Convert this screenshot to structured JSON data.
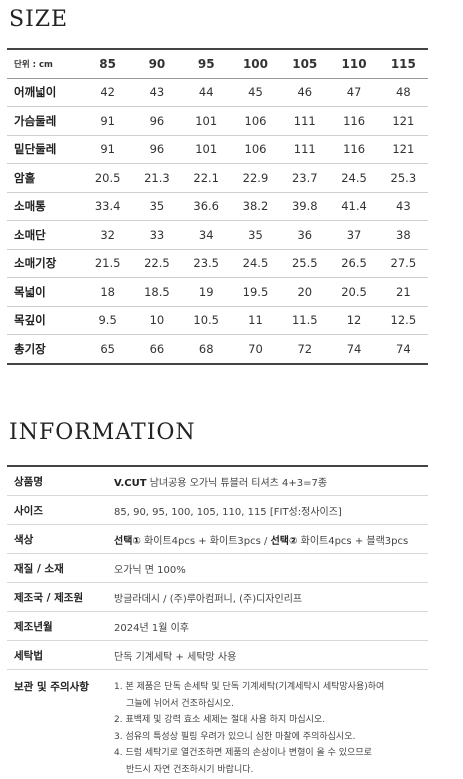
{
  "size_section": {
    "title": "SIZE",
    "unit_label": "단위 : cm",
    "sizes": [
      "85",
      "90",
      "95",
      "100",
      "105",
      "110",
      "115"
    ],
    "rows": [
      {
        "label": "어깨넓이",
        "values": [
          "42",
          "43",
          "44",
          "45",
          "46",
          "47",
          "48"
        ]
      },
      {
        "label": "가슴둘레",
        "values": [
          "91",
          "96",
          "101",
          "106",
          "111",
          "116",
          "121"
        ]
      },
      {
        "label": "밑단둘레",
        "values": [
          "91",
          "96",
          "101",
          "106",
          "111",
          "116",
          "121"
        ]
      },
      {
        "label": "암홀",
        "values": [
          "20.5",
          "21.3",
          "22.1",
          "22.9",
          "23.7",
          "24.5",
          "25.3"
        ]
      },
      {
        "label": "소매통",
        "values": [
          "33.4",
          "35",
          "36.6",
          "38.2",
          "39.8",
          "41.4",
          "43"
        ]
      },
      {
        "label": "소매단",
        "values": [
          "32",
          "33",
          "34",
          "35",
          "36",
          "37",
          "38"
        ]
      },
      {
        "label": "소매기장",
        "values": [
          "21.5",
          "22.5",
          "23.5",
          "24.5",
          "25.5",
          "26.5",
          "27.5"
        ]
      },
      {
        "label": "목넓이",
        "values": [
          "18",
          "18.5",
          "19",
          "19.5",
          "20",
          "20.5",
          "21"
        ]
      },
      {
        "label": "목깊이",
        "values": [
          "9.5",
          "10",
          "10.5",
          "11",
          "11.5",
          "12",
          "12.5"
        ]
      },
      {
        "label": "총기장",
        "values": [
          "65",
          "66",
          "68",
          "70",
          "72",
          "74",
          "74"
        ]
      }
    ]
  },
  "info_section": {
    "title": "INFORMATION",
    "product_name": {
      "label": "상품명",
      "brand": "V.CUT",
      "value": " 남녀공용 오가닉 튜블러 티셔츠 4+3=7종"
    },
    "sizes": {
      "label": "사이즈",
      "value": "85, 90, 95, 100, 105, 110, 115 [FIT성:정사이즈]"
    },
    "color": {
      "label": "색상",
      "opt1_label": "선택①",
      "opt1_value": " 화이트4pcs + 화이트3pcs  / ",
      "opt2_label": "선택②",
      "opt2_value": " 화이트4pcs + 블랙3pcs"
    },
    "material": {
      "label": "재질 / 소재",
      "value": "오가닉 면 100%"
    },
    "manufacturer": {
      "label": "제조국 / 제조원",
      "value": "방글라데시 / (주)루아컴퍼니, (주)디자인리프"
    },
    "date": {
      "label": "제조년월",
      "value": "2024년 1월 이후"
    },
    "washing": {
      "label": "세탁법",
      "value": "단독 기계세탁 + 세탁망 사용"
    },
    "caution": {
      "label": "보관 및 주의사항",
      "lines": [
        "1. 본 제품은 단독 손세탁 및 단독 기계세탁(기계세탁시  세탁망사용)하여",
        "그늘에 뉘어서 건조하십시오.",
        "2. 표백제 및 강력 효소 세제는 절대 사용 하지 마십시오.",
        "3. 섬유의 특성상 필링 우려가 있으니 심한 마찰에 주의하십시오.",
        "4. 드럼 세탁기로 열건조하면 제품의 손상이나 변형이 올 수 있으므로",
        "반드시 자연 건조하시기 바랍니다."
      ]
    }
  }
}
